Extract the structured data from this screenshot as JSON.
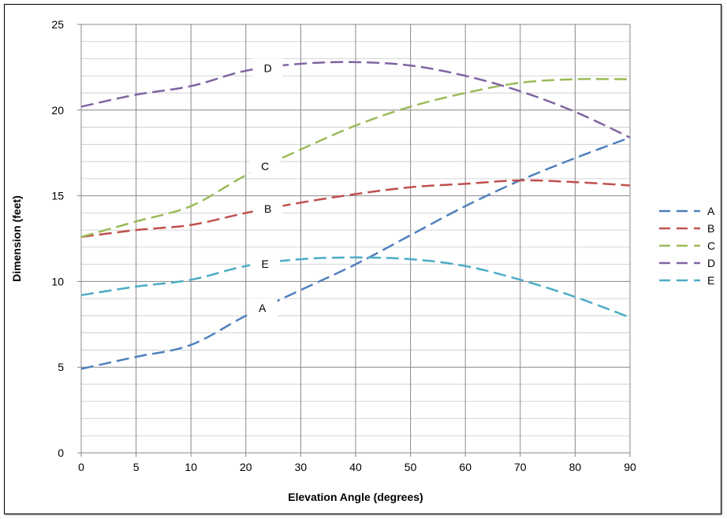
{
  "chart_data": {
    "type": "line",
    "title": "",
    "xlabel": "Elevation Angle (degrees)",
    "ylabel": "Dimension (feet)",
    "categories": [
      "0",
      "5",
      "10",
      "20",
      "30",
      "40",
      "50",
      "60",
      "70",
      "80",
      "90"
    ],
    "x_tick_labels": [
      "0",
      "5",
      "10",
      "20",
      "30",
      "40",
      "50",
      "60",
      "70",
      "80",
      "90"
    ],
    "y_tick_labels": [
      "0",
      "5",
      "10",
      "15",
      "20",
      "25"
    ],
    "ylim": [
      0,
      25
    ],
    "y_major_step": 5,
    "y_minor_step": 1,
    "grid": true,
    "legend_position": "right",
    "line_style": "dashed",
    "series": [
      {
        "name": "A",
        "color": "#4f81bd",
        "values": [
          4.9,
          5.6,
          6.3,
          8.0,
          9.5,
          11.0,
          12.7,
          14.4,
          15.9,
          17.2,
          18.4
        ]
      },
      {
        "name": "B",
        "color": "#c0504d",
        "values": [
          12.6,
          13.0,
          13.3,
          14.0,
          14.6,
          15.1,
          15.5,
          15.7,
          15.9,
          15.8,
          15.6
        ]
      },
      {
        "name": "C",
        "color": "#9bbb59",
        "values": [
          12.6,
          13.5,
          14.4,
          16.2,
          17.7,
          19.1,
          20.2,
          21.0,
          21.6,
          21.8,
          21.8
        ]
      },
      {
        "name": "D",
        "color": "#8064a2",
        "values": [
          20.2,
          20.9,
          21.4,
          22.3,
          22.7,
          22.8,
          22.6,
          22.0,
          21.1,
          19.9,
          18.4
        ]
      },
      {
        "name": "E",
        "color": "#4bacc6",
        "values": [
          9.2,
          9.7,
          10.1,
          10.9,
          11.3,
          11.4,
          11.3,
          10.9,
          10.1,
          9.1,
          7.9
        ]
      }
    ],
    "annotations": [
      {
        "text": "A",
        "series": "A",
        "x_index": 3.3
      },
      {
        "text": "B",
        "series": "B",
        "x_index": 3.4
      },
      {
        "text": "C",
        "series": "C",
        "x_index": 3.35
      },
      {
        "text": "D",
        "series": "D",
        "x_index": 3.4
      },
      {
        "text": "E",
        "series": "E",
        "x_index": 3.35
      }
    ]
  }
}
